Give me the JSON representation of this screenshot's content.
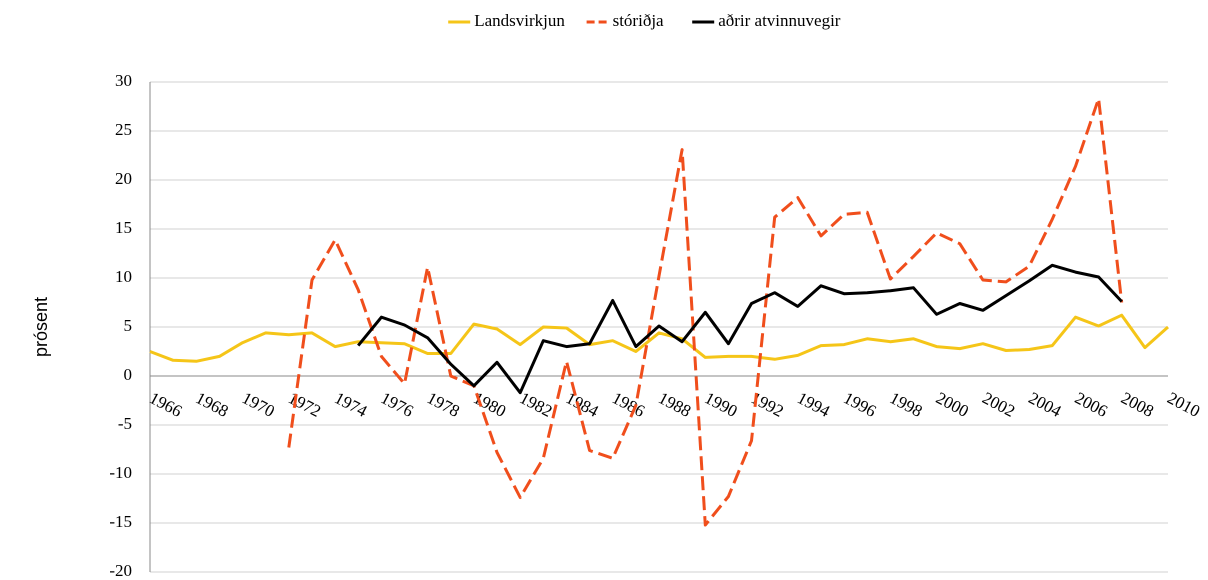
{
  "chart_data": {
    "type": "line",
    "ylabel": "prósent",
    "categories": [
      "1966",
      null,
      "1968",
      null,
      "1970",
      null,
      "1972",
      null,
      "1974",
      null,
      "1976",
      null,
      "1978",
      null,
      "1980",
      null,
      "1982",
      null,
      "1984",
      null,
      "1986",
      null,
      "1988",
      null,
      "1990",
      null,
      "1992",
      null,
      "1994",
      null,
      "1996",
      null,
      "1998",
      null,
      "2000",
      null,
      "2002",
      null,
      "2004",
      null,
      "2006",
      null,
      "2008",
      null,
      "2010"
    ],
    "series": [
      {
        "name": "Landsvirkjun",
        "color": "#f5c518",
        "dash": false,
        "values": [
          2.5,
          1.6,
          1.5,
          2.0,
          3.4,
          4.4,
          4.2,
          4.4,
          3.0,
          3.5,
          3.4,
          3.3,
          2.3,
          2.3,
          5.3,
          4.8,
          3.2,
          5.0,
          4.9,
          3.2,
          3.6,
          2.5,
          4.4,
          3.8,
          1.9,
          2.0,
          2.0,
          1.7,
          2.1,
          3.1,
          3.2,
          3.8,
          3.5,
          3.8,
          3.0,
          2.8,
          3.3,
          2.6,
          2.7,
          3.1,
          6.0,
          5.1,
          6.2,
          2.9,
          5.0
        ]
      },
      {
        "name": "stóriðja",
        "color": "#f04e1c",
        "dash": true,
        "values": [
          null,
          null,
          null,
          null,
          null,
          null,
          -7.3,
          9.8,
          13.9,
          8.8,
          2.0,
          -0.8,
          11.1,
          0.0,
          -1.0,
          -7.8,
          -12.4,
          -8.4,
          1.5,
          -7.6,
          -8.4,
          -3.0,
          10.2,
          23.1,
          -15.2,
          -12.3,
          -6.6,
          16.2,
          18.2,
          14.3,
          16.5,
          16.7,
          9.9,
          12.2,
          14.6,
          13.5,
          9.8,
          9.6,
          11.2,
          16.0,
          21.4,
          28.3,
          7.5,
          null,
          null
        ]
      },
      {
        "name": "aðrir atvinnuvegir",
        "color": "#000000",
        "dash": false,
        "values": [
          null,
          null,
          null,
          null,
          null,
          null,
          null,
          null,
          null,
          3.1,
          6.0,
          5.2,
          3.9,
          1.2,
          -1.0,
          1.4,
          -1.7,
          3.6,
          3.0,
          3.3,
          7.7,
          3.0,
          5.1,
          3.5,
          6.5,
          3.3,
          7.4,
          8.5,
          7.1,
          9.2,
          8.4,
          8.5,
          8.7,
          9.0,
          6.3,
          7.4,
          6.7,
          8.2,
          9.7,
          11.3,
          10.6,
          10.1,
          7.6,
          null,
          null
        ]
      }
    ],
    "ylim": [
      -20,
      30
    ],
    "yticks": [
      -20,
      -15,
      -10,
      -5,
      0,
      5,
      10,
      15,
      20,
      25,
      30
    ],
    "grid": true,
    "legend": "top"
  }
}
